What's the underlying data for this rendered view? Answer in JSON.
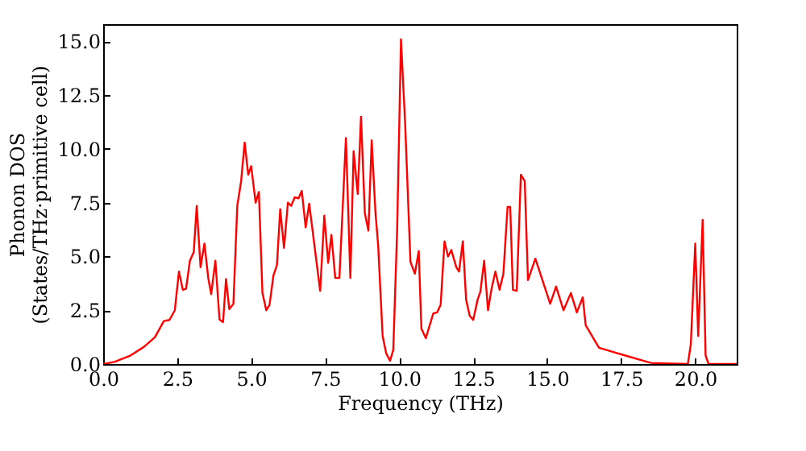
{
  "chart_data": {
    "type": "line",
    "xlabel": "Frequency (THz)",
    "ylabel": "Phonon DOS\n(States/THz·primitive cell)",
    "x": [
      0,
      0.38,
      0.93,
      1.38,
      1.75,
      2.05,
      2.24,
      2.42,
      2.56,
      2.69,
      2.8,
      2.93,
      3.06,
      3.16,
      3.29,
      3.42,
      3.55,
      3.65,
      3.79,
      3.93,
      4.05,
      4.15,
      4.26,
      4.4,
      4.53,
      4.66,
      4.78,
      4.9,
      5.0,
      5.15,
      5.26,
      5.38,
      5.51,
      5.62,
      5.75,
      5.87,
      5.98,
      6.11,
      6.24,
      6.35,
      6.47,
      6.6,
      6.71,
      6.84,
      6.96,
      7.33,
      7.47,
      7.6,
      7.71,
      7.84,
      7.98,
      8.2,
      8.35,
      8.46,
      8.6,
      8.71,
      8.84,
      8.96,
      9.07,
      9.2,
      9.29,
      9.44,
      9.56,
      9.69,
      9.8,
      9.93,
      10.06,
      10.2,
      10.38,
      10.53,
      10.66,
      10.75,
      10.9,
      11.15,
      11.28,
      11.4,
      11.53,
      11.65,
      11.76,
      11.93,
      12.02,
      12.15,
      12.26,
      12.38,
      12.5,
      12.65,
      12.74,
      12.87,
      13.0,
      13.12,
      13.25,
      13.39,
      13.52,
      13.66,
      13.75,
      13.84,
      13.97,
      14.11,
      14.24,
      14.35,
      14.6,
      15.1,
      15.3,
      15.55,
      15.8,
      16.0,
      16.2,
      16.3,
      16.75,
      17.5,
      18.5,
      19.75,
      19.85,
      20.0,
      20.1,
      20.25,
      20.35,
      20.45,
      21.4
    ],
    "series": [
      {
        "color": "#ff0000",
        "values": [
          0,
          0.1,
          0.4,
          0.8,
          1.25,
          2.0,
          2.05,
          2.5,
          4.3,
          3.45,
          3.5,
          4.8,
          5.2,
          7.35,
          4.5,
          5.6,
          4.0,
          3.25,
          4.8,
          2.07,
          1.95,
          3.95,
          2.55,
          2.8,
          7.35,
          8.5,
          10.3,
          8.8,
          9.2,
          7.5,
          8.0,
          3.3,
          2.5,
          2.75,
          4.1,
          4.6,
          7.2,
          5.4,
          7.5,
          7.35,
          7.75,
          7.7,
          8.05,
          6.35,
          7.45,
          3.4,
          6.9,
          4.7,
          6.0,
          4.0,
          4.0,
          10.5,
          4.0,
          9.9,
          7.9,
          11.5,
          7.0,
          6.2,
          10.4,
          7.0,
          5.5,
          1.3,
          0.5,
          0.15,
          0.65,
          6.2,
          15.1,
          11.2,
          4.75,
          4.2,
          5.25,
          1.65,
          1.2,
          2.35,
          2.4,
          2.75,
          5.7,
          5.0,
          5.3,
          4.5,
          4.3,
          5.7,
          3.0,
          2.25,
          2.05,
          3.0,
          3.35,
          4.8,
          2.5,
          3.5,
          4.3,
          3.45,
          4.2,
          7.3,
          7.3,
          3.45,
          3.4,
          8.8,
          8.5,
          3.9,
          4.9,
          2.8,
          3.6,
          2.5,
          3.3,
          2.4,
          3.1,
          1.8,
          0.75,
          0.45,
          0.05,
          0,
          0.9,
          5.6,
          1.3,
          6.7,
          0.4,
          0,
          0
        ]
      }
    ],
    "xlim": [
      0,
      21.4
    ],
    "ylim": [
      0,
      15.8
    ],
    "xticks": [
      {
        "value": 0,
        "label": "0.0"
      },
      {
        "value": 2.5,
        "label": "2.5"
      },
      {
        "value": 5,
        "label": "5.0"
      },
      {
        "value": 7.5,
        "label": "7.5"
      },
      {
        "value": 10,
        "label": "10.0"
      },
      {
        "value": 12.5,
        "label": "12.5"
      },
      {
        "value": 15,
        "label": "15.0"
      },
      {
        "value": 17.5,
        "label": "17.5"
      },
      {
        "value": 20,
        "label": "20.0"
      }
    ],
    "yticks": [
      {
        "value": 0,
        "label": "0.0"
      },
      {
        "value": 2.5,
        "label": "2.5"
      },
      {
        "value": 5,
        "label": "5.0"
      },
      {
        "value": 7.5,
        "label": "7.5"
      },
      {
        "value": 10,
        "label": "10.0"
      },
      {
        "value": 12.5,
        "label": "12.5"
      },
      {
        "value": 15,
        "label": "15.0"
      }
    ],
    "grid": false
  }
}
